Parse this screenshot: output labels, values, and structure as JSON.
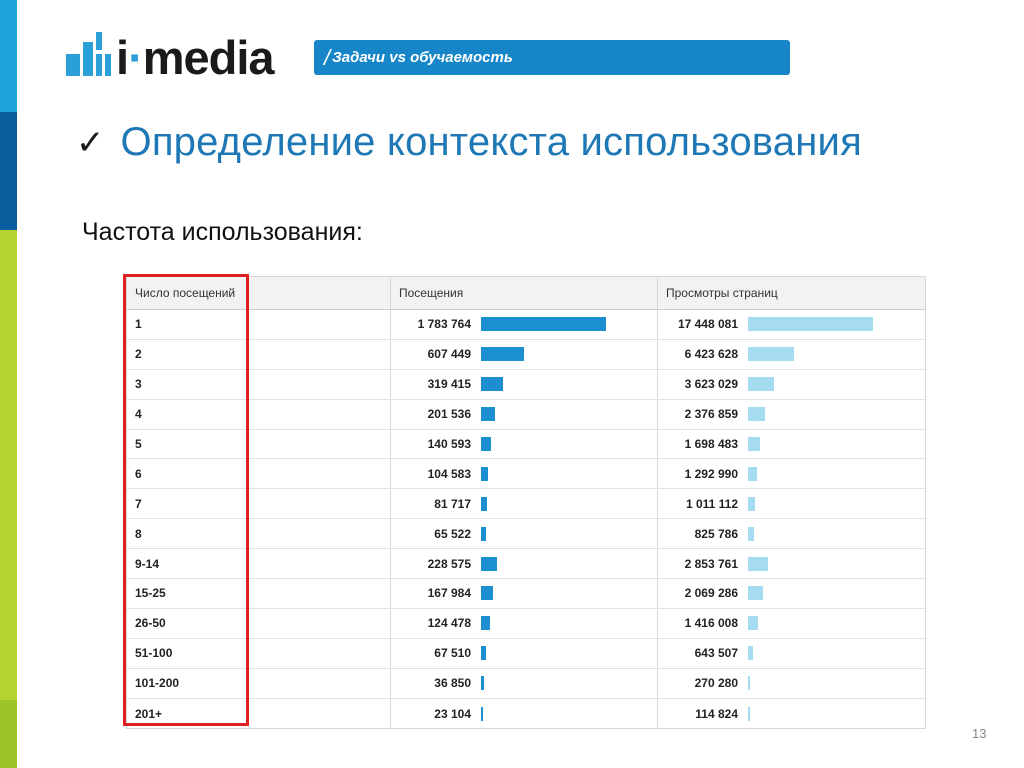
{
  "colors": {
    "accent": "#1e78b6",
    "banner": "#1686c8",
    "highlight": "#e02020",
    "bar_visits": "#1b8fcf",
    "bar_views": "#a5dcf2"
  },
  "logo": {
    "text_prefix": "i",
    "text_suffix": "media"
  },
  "banner": {
    "slash": "/",
    "text": "Задачи vs обучаемость"
  },
  "title": {
    "check": "✓",
    "text": "Определение контекста использования"
  },
  "subtitle": "Частота использования:",
  "table": {
    "headers": [
      "Число посещений",
      "Посещения",
      "Просмотры страниц"
    ],
    "max_visits": 1783764,
    "max_views": 17448081,
    "rows": [
      {
        "label": "1",
        "visits": "1 783 764",
        "visits_value": 1783764,
        "views": "17 448 081",
        "views_value": 17448081
      },
      {
        "label": "2",
        "visits": "607 449",
        "visits_value": 607449,
        "views": "6 423 628",
        "views_value": 6423628
      },
      {
        "label": "3",
        "visits": "319 415",
        "visits_value": 319415,
        "views": "3 623 029",
        "views_value": 3623029
      },
      {
        "label": "4",
        "visits": "201 536",
        "visits_value": 201536,
        "views": "2 376 859",
        "views_value": 2376859
      },
      {
        "label": "5",
        "visits": "140 593",
        "visits_value": 140593,
        "views": "1 698 483",
        "views_value": 1698483
      },
      {
        "label": "6",
        "visits": "104 583",
        "visits_value": 104583,
        "views": "1 292 990",
        "views_value": 1292990
      },
      {
        "label": "7",
        "visits": "81 717",
        "visits_value": 81717,
        "views": "1 011 112",
        "views_value": 1011112
      },
      {
        "label": "8",
        "visits": "65 522",
        "visits_value": 65522,
        "views": "825 786",
        "views_value": 825786
      },
      {
        "label": "9-14",
        "visits": "228 575",
        "visits_value": 228575,
        "views": "2 853 761",
        "views_value": 2853761
      },
      {
        "label": "15-25",
        "visits": "167 984",
        "visits_value": 167984,
        "views": "2 069 286",
        "views_value": 2069286
      },
      {
        "label": "26-50",
        "visits": "124 478",
        "visits_value": 124478,
        "views": "1 416 008",
        "views_value": 1416008
      },
      {
        "label": "51-100",
        "visits": "67 510",
        "visits_value": 67510,
        "views": "643 507",
        "views_value": 643507
      },
      {
        "label": "101-200",
        "visits": "36 850",
        "visits_value": 36850,
        "views": "270 280",
        "views_value": 270280
      },
      {
        "label": "201+",
        "visits": "23 104",
        "visits_value": 23104,
        "views": "114 824",
        "views_value": 114824
      }
    ]
  },
  "page_number": "13"
}
